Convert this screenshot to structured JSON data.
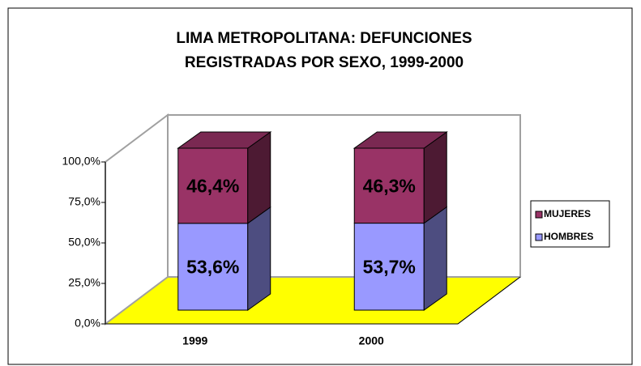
{
  "chart_data": {
    "type": "bar3d_stacked",
    "title": [
      "LIMA METROPOLITANA: DEFUNCIONES",
      "REGISTRADAS POR SEXO, 1999-2000"
    ],
    "categories": [
      "1999",
      "2000"
    ],
    "series": [
      {
        "name": "HOMBRES",
        "color": "#9999ff",
        "values": [
          53.6,
          53.7
        ],
        "value_labels": [
          "53,6%",
          "53,7%"
        ]
      },
      {
        "name": "MUJERES",
        "color": "#993366",
        "values": [
          46.4,
          46.3
        ],
        "value_labels": [
          "46,4%",
          "46,3%"
        ]
      }
    ],
    "ylim": [
      0,
      100
    ],
    "yticks": [
      {
        "value": 0,
        "label": "0,0%"
      },
      {
        "value": 25,
        "label": "25,0%"
      },
      {
        "value": 50,
        "label": "50,0%"
      },
      {
        "value": 75,
        "label": "75,0%"
      },
      {
        "value": 100,
        "label": "100,0%"
      }
    ],
    "floor_color": "#ffff00",
    "legend": "right"
  }
}
